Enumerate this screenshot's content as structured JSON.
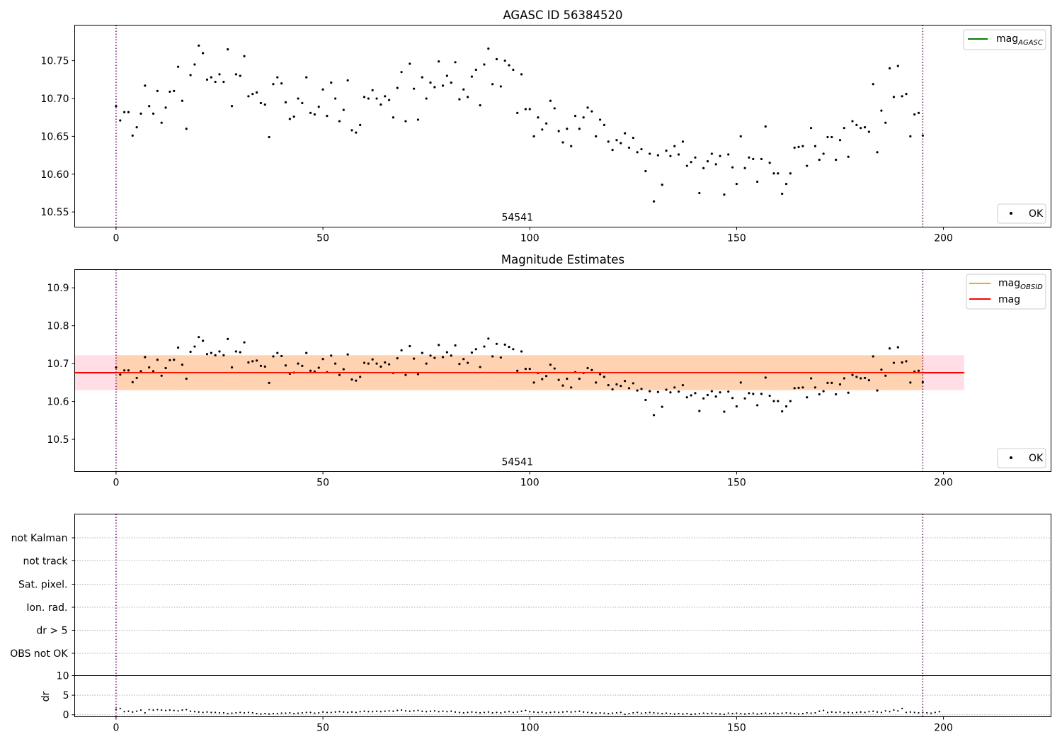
{
  "chart_data": [
    {
      "type": "scatter",
      "title": "AGASC ID 56384520",
      "xlim": [
        -10,
        226
      ],
      "ylim": [
        10.53,
        10.797
      ],
      "xticks": [
        0,
        50,
        100,
        150,
        200
      ],
      "yticks": [
        10.55,
        10.6,
        10.65,
        10.7,
        10.75
      ],
      "ytick_labels": [
        "10.55",
        "10.60",
        "10.65",
        "10.70",
        "10.75"
      ],
      "vlines": [
        0,
        195
      ],
      "annotation": "54541",
      "annotation_x": 97,
      "legend_lines": [
        {
          "label": "mag",
          "sub": "AGASC",
          "color": "#008000"
        }
      ],
      "legend_points": [
        {
          "label": "OK",
          "color": "#000000"
        }
      ],
      "series": [
        {
          "name": "OK"
        }
      ]
    },
    {
      "type": "scatter",
      "title": "Magnitude Estimates",
      "xlim": [
        -10,
        226
      ],
      "ylim": [
        10.415,
        10.948
      ],
      "xticks": [
        0,
        50,
        100,
        150,
        200
      ],
      "yticks": [
        10.5,
        10.6,
        10.7,
        10.8,
        10.9
      ],
      "ytick_labels": [
        "10.5",
        "10.6",
        "10.7",
        "10.8",
        "10.9"
      ],
      "vlines": [
        0,
        195
      ],
      "annotation": "54541",
      "annotation_x": 97,
      "mag_line": 10.676,
      "band": [
        10.63,
        10.722
      ],
      "band_x": [
        -10,
        205
      ],
      "legend_lines": [
        {
          "label": "mag",
          "sub": "OBSID",
          "color": "#ffa500"
        },
        {
          "label": "mag",
          "sub": "",
          "color": "#ff0000"
        }
      ],
      "legend_points": [
        {
          "label": "OK",
          "color": "#000000"
        }
      ],
      "series": [
        {
          "name": "OK"
        }
      ]
    },
    {
      "type": "scatter",
      "xlim": [
        -10,
        226
      ],
      "flag_labels": [
        "not Kalman",
        "not track",
        "Sat. pixel.",
        "Ion. rad.",
        "dr > 5",
        "OBS not OK"
      ],
      "vlines": [
        0,
        195
      ]
    },
    {
      "type": "scatter",
      "xlim": [
        -10,
        226
      ],
      "ylim": [
        -0.5,
        10
      ],
      "xticks": [
        0,
        50,
        100,
        150,
        200
      ],
      "yticks": [
        0,
        5,
        10
      ],
      "ytick_labels": [
        "0",
        "5",
        "10"
      ],
      "ylabel": "dr",
      "vlines": [
        0,
        195
      ],
      "series": [
        {}
      ]
    }
  ],
  "mag_values": [
    10.69,
    10.671,
    10.682,
    10.682,
    10.651,
    10.662,
    10.68,
    10.717,
    10.69,
    10.68,
    10.71,
    10.668,
    10.688,
    10.709,
    10.71,
    10.742,
    10.697,
    10.66,
    10.731,
    10.745,
    10.77,
    10.76,
    10.725,
    10.728,
    10.722,
    10.732,
    10.722,
    10.765,
    10.69,
    10.732,
    10.73,
    10.756,
    10.703,
    10.706,
    10.708,
    10.694,
    10.692,
    10.649,
    10.719,
    10.728,
    10.72,
    10.695,
    10.673,
    10.676,
    10.7,
    10.694,
    10.728,
    10.681,
    10.679,
    10.689,
    10.712,
    10.677,
    10.721,
    10.7,
    10.67,
    10.685,
    10.724,
    10.658,
    10.655,
    10.665,
    10.702,
    10.7,
    10.711,
    10.7,
    10.692,
    10.703,
    10.698,
    10.675,
    10.714,
    10.735,
    10.67,
    10.746,
    10.713,
    10.672,
    10.728,
    10.7,
    10.721,
    10.715,
    10.749,
    10.717,
    10.73,
    10.721,
    10.748,
    10.699,
    10.712,
    10.702,
    10.729,
    10.738,
    10.691,
    10.745,
    10.766,
    10.719,
    10.752,
    10.716,
    10.75,
    10.744,
    10.738,
    10.681,
    10.732,
    10.686,
    10.686,
    10.65,
    10.675,
    10.659,
    10.667,
    10.697,
    10.687,
    10.657,
    10.642,
    10.66,
    10.637,
    10.677,
    10.66,
    10.675,
    10.688,
    10.683,
    10.65,
    10.672,
    10.665,
    10.643,
    10.632,
    10.645,
    10.641,
    10.654,
    10.635,
    10.648,
    10.629,
    10.633,
    10.604,
    10.627,
    10.564,
    10.625,
    10.586,
    10.631,
    10.624,
    10.637,
    10.626,
    10.643,
    10.611,
    10.616,
    10.622,
    10.575,
    10.608,
    10.617,
    10.627,
    10.613,
    10.624,
    10.573,
    10.626,
    10.609,
    10.587,
    10.65,
    10.608,
    10.622,
    10.62,
    10.59,
    10.62,
    10.663,
    10.615,
    10.601,
    10.601,
    10.574,
    10.587,
    10.601,
    10.635,
    10.636,
    10.637,
    10.611,
    10.661,
    10.637,
    10.619,
    10.627,
    10.649,
    10.649,
    10.619,
    10.645,
    10.661,
    10.623,
    10.67,
    10.665,
    10.661,
    10.662,
    10.656,
    10.719,
    10.629,
    10.684,
    10.668,
    10.74,
    10.702,
    10.743,
    10.703,
    10.706,
    10.65,
    10.679,
    10.681,
    10.651
  ],
  "dr_values": [
    1.4,
    1.6,
    0.8,
    0.9,
    0.7,
    0.9,
    1.2,
    0.5,
    1.3,
    1.2,
    1.3,
    1.2,
    1.1,
    1.2,
    1.1,
    1.0,
    1.2,
    1.3,
    0.9,
    0.8,
    0.7,
    0.6,
    0.7,
    0.6,
    0.6,
    0.5,
    0.5,
    0.3,
    0.4,
    0.5,
    0.6,
    0.5,
    0.6,
    0.5,
    0.3,
    0.2,
    0.3,
    0.2,
    0.3,
    0.3,
    0.4,
    0.4,
    0.5,
    0.3,
    0.4,
    0.5,
    0.6,
    0.6,
    0.4,
    0.5,
    0.7,
    0.6,
    0.6,
    0.7,
    0.8,
    0.7,
    0.6,
    0.7,
    0.6,
    0.8,
    0.9,
    0.8,
    0.8,
    0.9,
    0.8,
    0.9,
    1.0,
    0.9,
    1.1,
    1.2,
    1.0,
    0.9,
    1.0,
    1.1,
    0.9,
    0.8,
    0.9,
    1.0,
    0.8,
    0.9,
    0.8,
    0.9,
    0.7,
    0.6,
    0.5,
    0.6,
    0.7,
    0.6,
    0.5,
    0.6,
    0.7,
    0.5,
    0.6,
    0.5,
    0.7,
    0.8,
    0.6,
    0.7,
    0.9,
    1.1,
    0.8,
    0.7,
    0.6,
    0.7,
    0.5,
    0.6,
    0.7,
    0.6,
    0.7,
    0.8,
    0.7,
    0.8,
    0.9,
    0.7,
    0.6,
    0.5,
    0.4,
    0.5,
    0.4,
    0.3,
    0.4,
    0.5,
    0.6,
    0.1,
    0.3,
    0.5,
    0.6,
    0.4,
    0.5,
    0.6,
    0.5,
    0.4,
    0.3,
    0.4,
    0.3,
    0.2,
    0.3,
    0.2,
    0.3,
    0.1,
    0.2,
    0.3,
    0.4,
    0.3,
    0.4,
    0.3,
    0.2,
    0.1,
    0.4,
    0.3,
    0.4,
    0.3,
    0.2,
    0.3,
    0.4,
    0.2,
    0.3,
    0.4,
    0.3,
    0.4,
    0.3,
    0.4,
    0.5,
    0.4,
    0.3,
    0.2,
    0.3,
    0.5,
    0.4,
    0.5,
    0.9,
    1.1,
    0.6,
    0.7,
    0.6,
    0.7,
    0.5,
    0.6,
    0.5,
    0.6,
    0.7,
    0.6,
    0.8,
    0.9,
    0.7,
    0.6,
    1.0,
    0.8,
    1.2,
    1.0,
    1.6,
    0.6,
    0.7,
    0.6,
    0.5,
    0.6,
    0.5,
    0.4,
    0.6,
    0.8
  ]
}
